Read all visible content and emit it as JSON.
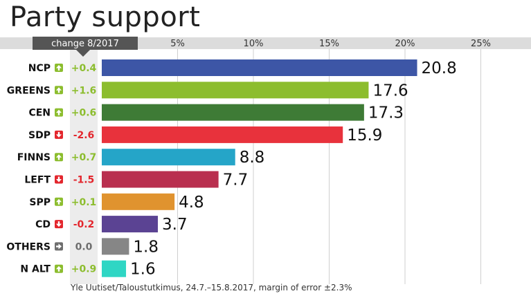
{
  "title": "Party support",
  "source": "Yle Uutiset/Taloustutkimus, 24.7.–15.8.2017, margin of error ±2.3%",
  "chart_data": {
    "type": "bar",
    "orientation": "horizontal",
    "title": "Party support",
    "change_header": "change 8/2017",
    "xlim": [
      0,
      25
    ],
    "x_ticks": [
      5,
      10,
      15,
      20,
      25
    ],
    "x_tick_labels": [
      "5%",
      "10%",
      "15%",
      "20%",
      "25%"
    ],
    "grid": true,
    "categories": [
      "NCP",
      "GREENS",
      "CEN",
      "SDP",
      "FINNS",
      "LEFT",
      "SPP",
      "CD",
      "OTHERS",
      "N ALT"
    ],
    "values": [
      20.8,
      17.6,
      17.3,
      15.9,
      8.8,
      7.7,
      4.8,
      3.7,
      1.8,
      1.6
    ],
    "value_labels": [
      "20.8",
      "17.6",
      "17.3",
      "15.9",
      "8.8",
      "7.7",
      "4.8",
      "3.7",
      "1.8",
      "1.6"
    ],
    "changes": [
      "+0.4",
      "+1.6",
      "+0.6",
      "-2.6",
      "+0.7",
      "-1.5",
      "+0.1",
      "-0.2",
      "0.0",
      "+0.9"
    ],
    "change_directions": [
      "up",
      "up",
      "up",
      "down",
      "up",
      "down",
      "up",
      "down",
      "flat",
      "up"
    ],
    "bar_colors": [
      "#3d56a6",
      "#8cbd2e",
      "#3e7b36",
      "#e8323c",
      "#25a5c8",
      "#b92f4f",
      "#e0932f",
      "#5b4393",
      "#868686",
      "#2fd6c4"
    ],
    "change_colors": {
      "up": "#8cbd2e",
      "down": "#e3262d",
      "flat": "#6e6e6e"
    }
  }
}
